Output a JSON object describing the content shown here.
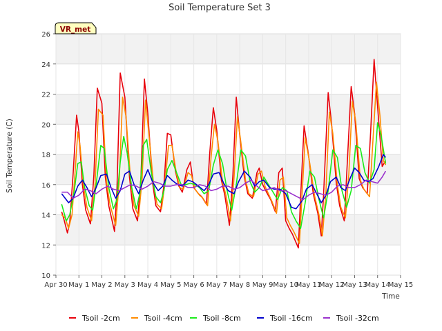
{
  "chart_data": {
    "type": "line",
    "title": "Soil Temperature Set 3",
    "xlabel": "Time",
    "ylabel": "Soil Temperature (C)",
    "badge": "VR_met",
    "ylim": [
      10,
      26
    ],
    "yticks": [
      10,
      12,
      14,
      16,
      18,
      20,
      22,
      24,
      26
    ],
    "xlim": [
      0,
      15
    ],
    "xticks": [
      0,
      1,
      2,
      3,
      4,
      5,
      6,
      7,
      8,
      9,
      10,
      11,
      12,
      13,
      14,
      15
    ],
    "xtick_labels": [
      "Apr 30",
      "May 1",
      "May 2",
      "May 3",
      "May 4",
      "May 5",
      "May 6",
      "May 7",
      "May 8",
      "May 9",
      "May 10",
      "May 11",
      "May 12",
      "May 13",
      "May 14",
      "May 15"
    ],
    "grid": true,
    "legend_position": "bottom",
    "series": [
      {
        "name": "Tsoil -2cm",
        "color": "#e8000b",
        "x": [
          0.25,
          0.35,
          0.5,
          0.6,
          0.75,
          0.9,
          1.0,
          1.15,
          1.3,
          1.5,
          1.65,
          1.8,
          2.0,
          2.15,
          2.3,
          2.55,
          2.65,
          2.8,
          3.0,
          3.2,
          3.35,
          3.55,
          3.7,
          3.85,
          4.0,
          4.2,
          4.35,
          4.55,
          4.7,
          4.85,
          5.0,
          5.2,
          5.35,
          5.5,
          5.7,
          5.85,
          6.0,
          6.2,
          6.35,
          6.55,
          6.7,
          6.85,
          7.0,
          7.2,
          7.35,
          7.55,
          7.7,
          7.85,
          8.0,
          8.2,
          8.35,
          8.55,
          8.75,
          8.85,
          9.0,
          9.2,
          9.35,
          9.55,
          9.7,
          9.85,
          10.0,
          10.15,
          10.3,
          10.55,
          10.65,
          10.8,
          11.0,
          11.2,
          11.4,
          11.55,
          11.65,
          11.85,
          12.0,
          12.2,
          12.35,
          12.55,
          12.65,
          12.85,
          13.0,
          13.2,
          13.35,
          13.55,
          13.7,
          13.85,
          14.0,
          14.2,
          14.35
        ],
        "values": [
          14.2,
          13.7,
          12.8,
          13.5,
          16.8,
          20.6,
          19.5,
          16.0,
          14.3,
          13.4,
          16.6,
          22.4,
          21.4,
          16.5,
          14.6,
          12.9,
          15.5,
          23.4,
          21.8,
          16.5,
          14.4,
          13.6,
          16.5,
          23.0,
          20.7,
          16.2,
          14.6,
          14.2,
          16.0,
          19.4,
          19.3,
          16.9,
          15.9,
          15.5,
          17.0,
          17.5,
          15.8,
          15.4,
          15.2,
          14.7,
          18.2,
          21.1,
          19.6,
          16.3,
          15.3,
          13.3,
          16.6,
          21.8,
          19.3,
          16.5,
          15.4,
          15.1,
          16.8,
          17.1,
          16.0,
          15.4,
          15.0,
          14.2,
          16.8,
          17.1,
          13.6,
          13.1,
          12.7,
          11.8,
          15.2,
          19.9,
          17.9,
          15.4,
          14.1,
          12.6,
          15.4,
          22.1,
          20.0,
          16.1,
          14.6,
          13.6,
          16.5,
          22.5,
          20.7,
          16.4,
          15.8,
          15.4,
          19.6,
          24.3,
          21.2,
          17.2,
          17.6
        ]
      },
      {
        "name": "Tsoil -4cm",
        "color": "#ff8c00",
        "x": [
          0.25,
          0.4,
          0.55,
          0.7,
          0.85,
          0.95,
          1.05,
          1.2,
          1.35,
          1.55,
          1.7,
          1.85,
          2.05,
          2.2,
          2.35,
          2.6,
          2.75,
          2.9,
          3.05,
          3.25,
          3.4,
          3.6,
          3.75,
          3.9,
          4.05,
          4.25,
          4.4,
          4.6,
          4.75,
          4.9,
          5.05,
          5.25,
          5.4,
          5.55,
          5.75,
          5.9,
          6.05,
          6.25,
          6.4,
          6.6,
          6.75,
          6.9,
          7.05,
          7.25,
          7.4,
          7.6,
          7.75,
          7.9,
          8.05,
          8.25,
          8.4,
          8.6,
          8.8,
          8.95,
          9.1,
          9.25,
          9.4,
          9.6,
          9.75,
          9.9,
          10.05,
          10.2,
          10.35,
          10.6,
          10.7,
          10.85,
          11.05,
          11.25,
          11.45,
          11.6,
          11.75,
          11.9,
          12.05,
          12.25,
          12.4,
          12.6,
          12.75,
          12.9,
          13.05,
          13.25,
          13.4,
          13.65,
          13.8,
          13.95,
          14.1,
          14.25,
          14.35
        ],
        "values": [
          14.0,
          13.8,
          13.1,
          14.0,
          17.2,
          19.5,
          18.6,
          15.9,
          14.5,
          13.6,
          16.0,
          21.0,
          20.6,
          16.2,
          14.7,
          13.3,
          16.1,
          21.8,
          20.5,
          16.3,
          14.6,
          13.9,
          16.4,
          21.6,
          19.3,
          16.0,
          14.7,
          14.4,
          16.2,
          18.6,
          18.6,
          16.7,
          15.8,
          15.7,
          16.8,
          16.6,
          15.7,
          15.3,
          15.1,
          14.6,
          17.8,
          20.0,
          18.9,
          16.2,
          15.3,
          13.6,
          16.4,
          20.5,
          18.8,
          16.3,
          15.4,
          15.2,
          16.7,
          16.9,
          15.9,
          15.4,
          14.9,
          14.1,
          16.3,
          16.5,
          13.8,
          13.3,
          12.9,
          12.1,
          15.0,
          19.1,
          17.4,
          15.3,
          14.0,
          12.6,
          15.5,
          20.8,
          19.4,
          16.0,
          14.5,
          13.8,
          16.7,
          21.5,
          20.2,
          16.3,
          15.7,
          15.2,
          19.0,
          22.8,
          20.6,
          17.6,
          17.3
        ]
      },
      {
        "name": "Tsoil -8cm",
        "color": "#1aeb1a",
        "x": [
          0.25,
          0.45,
          0.6,
          0.8,
          0.95,
          1.1,
          1.25,
          1.45,
          1.6,
          1.75,
          1.95,
          2.1,
          2.3,
          2.5,
          2.65,
          2.8,
          2.95,
          3.1,
          3.3,
          3.5,
          3.65,
          3.8,
          3.95,
          4.15,
          4.35,
          4.55,
          4.7,
          4.85,
          5.05,
          5.25,
          5.45,
          5.65,
          5.85,
          6.05,
          6.25,
          6.45,
          6.65,
          6.85,
          7.05,
          7.25,
          7.45,
          7.65,
          7.85,
          8.05,
          8.25,
          8.45,
          8.65,
          8.85,
          9.05,
          9.25,
          9.45,
          9.65,
          9.85,
          10.05,
          10.25,
          10.45,
          10.65,
          10.85,
          11.05,
          11.25,
          11.45,
          11.65,
          11.85,
          12.05,
          12.25,
          12.45,
          12.65,
          12.85,
          13.05,
          13.25,
          13.45,
          13.65,
          13.85,
          14.0,
          14.15,
          14.35
        ],
        "values": [
          14.7,
          13.6,
          14.0,
          15.6,
          17.4,
          17.5,
          15.8,
          14.6,
          14.3,
          16.0,
          18.6,
          18.4,
          15.8,
          14.4,
          15.0,
          17.5,
          19.2,
          18.1,
          15.8,
          14.4,
          15.4,
          18.6,
          19.0,
          16.8,
          15.2,
          14.8,
          15.6,
          17.0,
          17.6,
          16.8,
          16.0,
          16.0,
          16.1,
          16.0,
          15.8,
          15.4,
          15.6,
          17.3,
          18.3,
          17.4,
          15.6,
          14.3,
          16.0,
          18.3,
          17.9,
          16.2,
          15.5,
          15.8,
          16.5,
          16.0,
          15.5,
          15.0,
          15.8,
          15.6,
          14.2,
          13.6,
          13.1,
          14.8,
          16.9,
          16.5,
          15.0,
          13.8,
          15.6,
          18.3,
          17.8,
          15.6,
          14.5,
          15.6,
          18.6,
          18.4,
          16.8,
          16.1,
          17.0,
          20.1,
          19.3,
          17.4
        ]
      },
      {
        "name": "Tsoil -16cm",
        "color": "#0000cd",
        "x": [
          0.25,
          0.55,
          0.75,
          0.95,
          1.15,
          1.35,
          1.55,
          1.75,
          1.95,
          2.2,
          2.4,
          2.6,
          2.8,
          3.0,
          3.2,
          3.4,
          3.6,
          3.8,
          4.0,
          4.2,
          4.45,
          4.65,
          4.85,
          5.05,
          5.3,
          5.5,
          5.75,
          5.95,
          6.2,
          6.45,
          6.65,
          6.85,
          7.1,
          7.3,
          7.5,
          7.75,
          7.95,
          8.2,
          8.45,
          8.65,
          8.85,
          9.05,
          9.3,
          9.5,
          9.75,
          10.0,
          10.25,
          10.45,
          10.7,
          10.9,
          11.15,
          11.35,
          11.55,
          11.75,
          11.95,
          12.2,
          12.4,
          12.6,
          12.8,
          13.0,
          13.2,
          13.4,
          13.6,
          13.8,
          14.05,
          14.25,
          14.35
        ],
        "values": [
          15.4,
          14.8,
          15.1,
          15.9,
          16.3,
          15.8,
          15.2,
          15.8,
          16.6,
          16.7,
          15.8,
          15.1,
          15.6,
          16.7,
          16.9,
          16.0,
          15.4,
          16.3,
          17.0,
          16.2,
          15.6,
          15.9,
          16.6,
          16.3,
          16.0,
          15.9,
          16.3,
          16.2,
          15.9,
          15.6,
          16.0,
          16.7,
          16.8,
          16.1,
          15.6,
          15.4,
          16.2,
          16.9,
          16.5,
          15.9,
          16.2,
          16.3,
          15.8,
          15.7,
          15.7,
          15.4,
          14.5,
          14.4,
          14.9,
          15.7,
          16.0,
          15.4,
          14.8,
          15.3,
          16.2,
          16.5,
          15.8,
          15.6,
          16.4,
          17.1,
          16.8,
          16.3,
          16.2,
          16.4,
          17.2,
          18.0,
          17.8
        ]
      },
      {
        "name": "Tsoil -32cm",
        "color": "#9a32cd",
        "x": [
          0.25,
          0.5,
          0.75,
          1.0,
          1.25,
          1.5,
          1.75,
          2.0,
          2.25,
          2.5,
          2.75,
          3.0,
          3.25,
          3.5,
          3.75,
          4.0,
          4.25,
          4.5,
          4.75,
          5.0,
          5.25,
          5.5,
          5.75,
          6.0,
          6.25,
          6.5,
          6.75,
          7.0,
          7.25,
          7.5,
          7.75,
          8.0,
          8.25,
          8.5,
          8.75,
          9.0,
          9.25,
          9.5,
          9.75,
          10.0,
          10.25,
          10.5,
          10.75,
          11.0,
          11.25,
          11.5,
          11.75,
          12.0,
          12.25,
          12.5,
          12.75,
          13.0,
          13.25,
          13.5,
          13.75,
          14.0,
          14.2,
          14.35
        ],
        "values": [
          15.5,
          15.5,
          15.1,
          15.3,
          15.7,
          15.6,
          15.4,
          15.7,
          15.9,
          15.7,
          15.6,
          15.8,
          16.0,
          15.9,
          15.7,
          15.9,
          16.2,
          16.1,
          15.9,
          15.9,
          16.0,
          16.0,
          15.8,
          15.8,
          16.0,
          15.9,
          15.6,
          15.7,
          15.9,
          15.9,
          15.7,
          15.8,
          16.1,
          16.3,
          15.9,
          15.6,
          15.7,
          15.8,
          15.6,
          15.6,
          15.4,
          15.2,
          15.0,
          15.3,
          15.5,
          15.4,
          15.3,
          15.5,
          15.9,
          16.0,
          15.8,
          15.8,
          16.0,
          16.3,
          16.2,
          16.1,
          16.5,
          16.9
        ]
      }
    ]
  }
}
